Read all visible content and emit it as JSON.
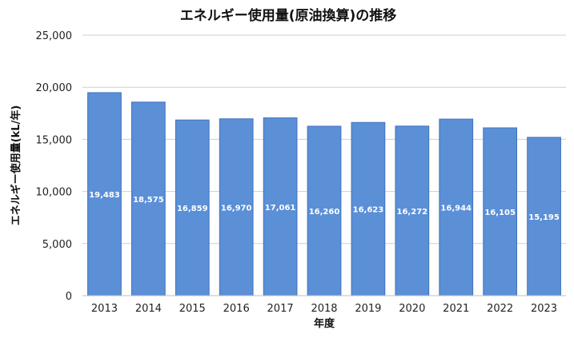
{
  "chart_data": {
    "type": "bar",
    "title": "エネルギー使用量(原油換算)の推移",
    "xlabel": "年度",
    "ylabel": "エネルギー使用量(kL/年)",
    "categories": [
      "2013",
      "2014",
      "2015",
      "2016",
      "2017",
      "2018",
      "2019",
      "2020",
      "2021",
      "2022",
      "2023"
    ],
    "values": [
      19483,
      18575,
      16859,
      16970,
      17061,
      16260,
      16623,
      16272,
      16944,
      16105,
      15195
    ],
    "value_labels": [
      "19,483",
      "18,575",
      "16,859",
      "16,970",
      "17,061",
      "16,260",
      "16,623",
      "16,272",
      "16,944",
      "16,105",
      "15,195"
    ],
    "y_ticks": [
      "0",
      "5,000",
      "10,000",
      "15,000",
      "20,000",
      "25,000"
    ],
    "ylim": [
      0,
      25000
    ],
    "grid": true,
    "legend": "none",
    "bar_color": "#5b8fd6",
    "bar_edge_color": "#3f73bf",
    "grid_color": "#cfcfcf"
  }
}
